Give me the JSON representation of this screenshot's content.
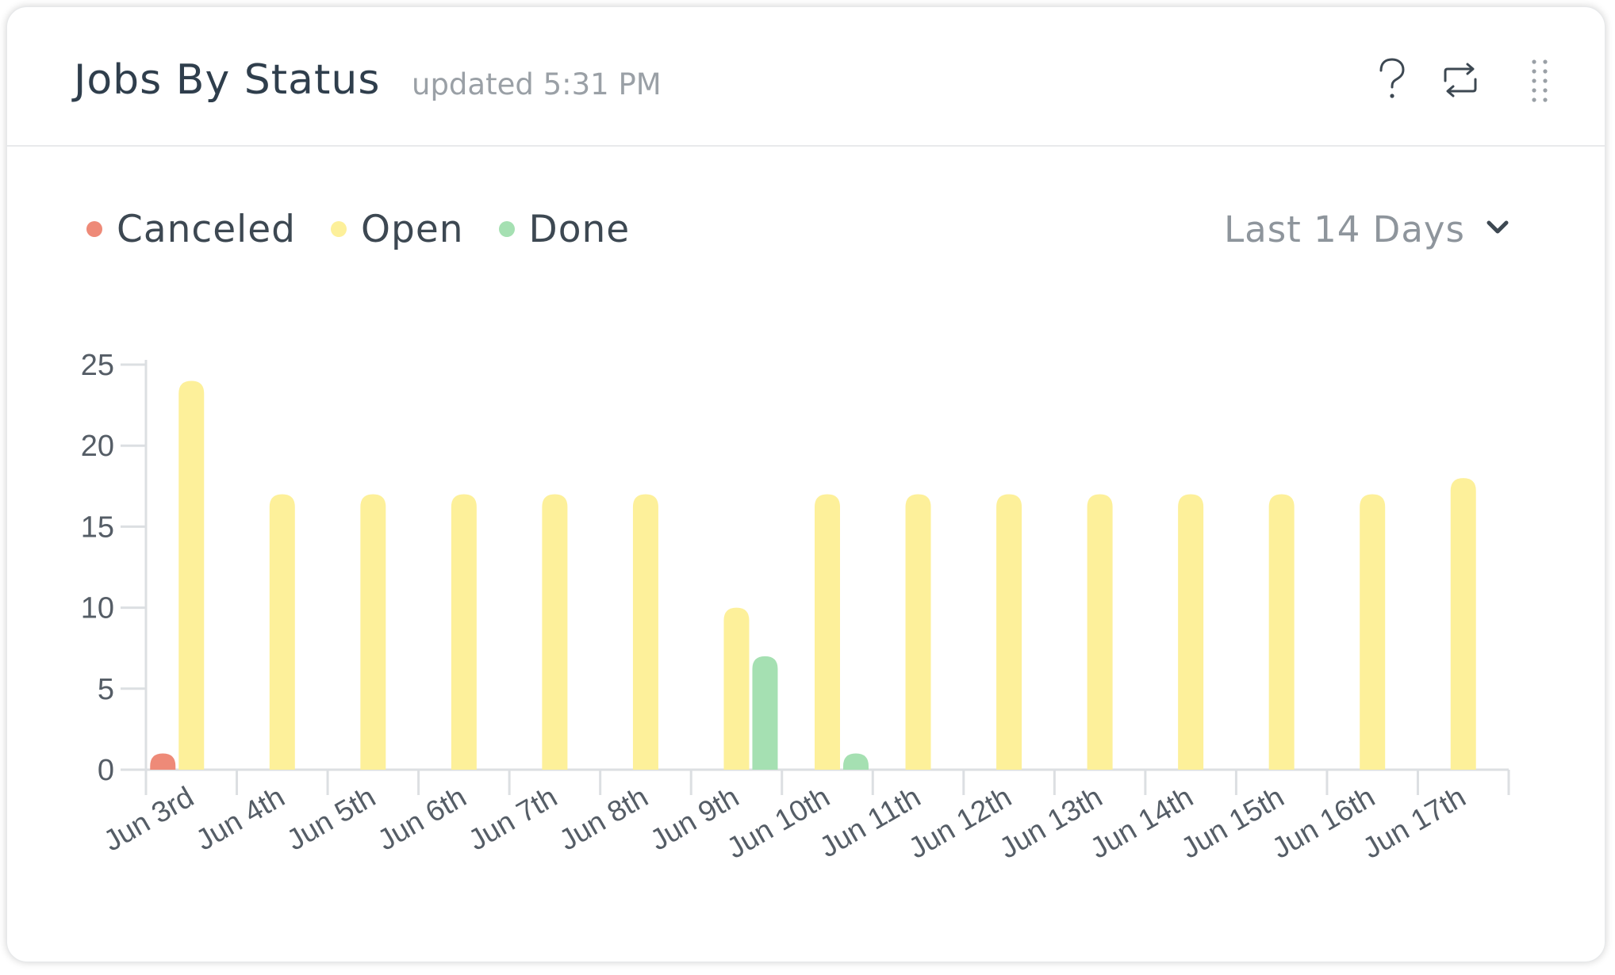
{
  "header": {
    "title": "Jobs By Status",
    "updated": "updated 5:31 PM",
    "help_icon": "question-mark-icon",
    "refresh_icon": "refresh-icon",
    "drag_icon": "drag-handle-icon"
  },
  "legend": {
    "items": [
      {
        "label": "Canceled",
        "color": "#ee8a78"
      },
      {
        "label": "Open",
        "color": "#fdf09a"
      },
      {
        "label": "Done",
        "color": "#a5e0b2"
      }
    ]
  },
  "range": {
    "label": "Last 14 Days",
    "icon": "chevron-down-icon"
  },
  "chart_data": {
    "type": "bar",
    "categories": [
      "Jun 3rd",
      "Jun 4th",
      "Jun 5th",
      "Jun 6th",
      "Jun 7th",
      "Jun 8th",
      "Jun 9th",
      "Jun 10th",
      "Jun 11th",
      "Jun 12th",
      "Jun 13th",
      "Jun 14th",
      "Jun 15th",
      "Jun 16th",
      "Jun 17th"
    ],
    "series": [
      {
        "name": "Canceled",
        "color": "#ee8a78",
        "values": [
          1,
          0,
          0,
          0,
          0,
          0,
          0,
          0,
          0,
          0,
          0,
          0,
          0,
          0,
          0
        ]
      },
      {
        "name": "Open",
        "color": "#fdf09a",
        "values": [
          24,
          17,
          17,
          17,
          17,
          17,
          10,
          17,
          17,
          17,
          17,
          17,
          17,
          17,
          18
        ]
      },
      {
        "name": "Done",
        "color": "#a5e0b2",
        "values": [
          0,
          0,
          0,
          0,
          0,
          0,
          7,
          1,
          0,
          0,
          0,
          0,
          0,
          0,
          0
        ]
      }
    ],
    "yticks": [
      "0",
      "5",
      "10",
      "15",
      "20",
      "25"
    ],
    "ylim": [
      0,
      25
    ],
    "xlabel": "",
    "ylabel": "",
    "grid": false,
    "legend_position": "top-left"
  }
}
